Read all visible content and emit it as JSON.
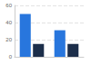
{
  "chart_data": {
    "type": "bar",
    "categories": [
      null,
      null
    ],
    "series": [
      {
        "color": "#2876dd",
        "values": [
          50,
          31
        ]
      },
      {
        "color": "#1c2e4a",
        "values": [
          15,
          15
        ]
      }
    ],
    "ylim": [
      0,
      60
    ],
    "yticks": [
      0,
      20,
      40,
      60
    ],
    "grid": true
  }
}
